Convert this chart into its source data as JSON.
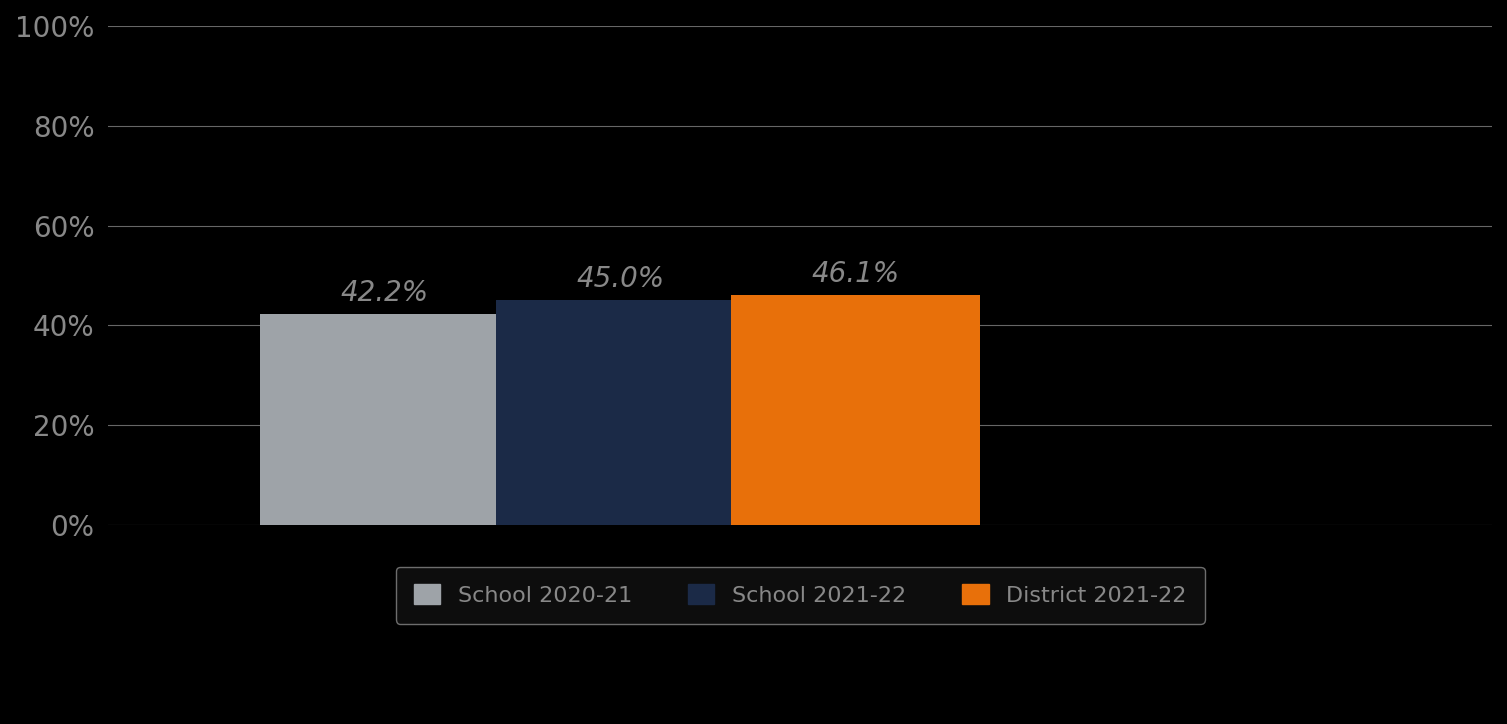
{
  "categories": [
    "School 2020-21",
    "School 2021-22",
    "District 2021-22"
  ],
  "values": [
    42.2,
    45.0,
    46.1
  ],
  "bar_colors": [
    "#9ea3a8",
    "#1b2a47",
    "#e8700a"
  ],
  "labels": [
    "42.2%",
    "45.0%",
    "46.1%"
  ],
  "ylim": [
    0,
    100
  ],
  "yticks": [
    0,
    20,
    40,
    60,
    80,
    100
  ],
  "ytick_labels": [
    "0%",
    "20%",
    "40%",
    "60%",
    "80%",
    "100%"
  ],
  "background_color": "#000000",
  "plot_bg_color": "#000000",
  "label_color": "#888888",
  "label_fontsize": 20,
  "ytick_fontsize": 20,
  "legend_fontsize": 16,
  "bar_width": 0.18,
  "grid_color": "#cccccc",
  "grid_alpha": 0.5,
  "grid_linewidth": 0.8,
  "legend_facecolor": "#111111",
  "legend_edgecolor": "#888888",
  "legend_text_color": "#888888"
}
